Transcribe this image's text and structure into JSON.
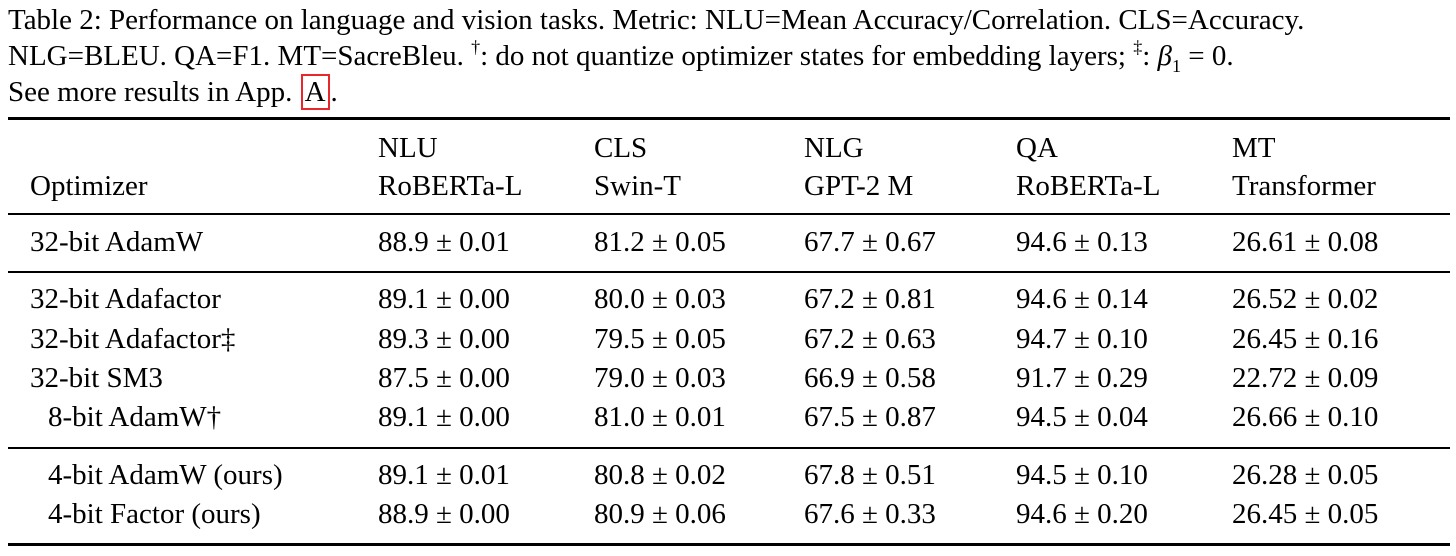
{
  "caption": {
    "label": "Table 2:",
    "line1_rest": " Performance on language and vision tasks. Metric: NLU=Mean Accuracy/Correlation. CLS=Accuracy.",
    "line2_a": "NLG=BLEU. QA=F1. MT=SacreBleu. ",
    "dagger": "†",
    "line2_b": ": do not quantize optimizer states for embedding layers; ",
    "ddagger": "‡",
    "line2_c": ": ",
    "beta": "β",
    "beta_sub": "1",
    "line2_d": " = 0.",
    "line3_a": "See more results in App. ",
    "ref": "A",
    "line3_b": "."
  },
  "header": {
    "optimizer": "Optimizer",
    "cols": [
      {
        "task": "NLU",
        "model": "RoBERTa-L"
      },
      {
        "task": "CLS",
        "model": "Swin-T"
      },
      {
        "task": "NLG",
        "model": "GPT-2 M"
      },
      {
        "task": "QA",
        "model": "RoBERTa-L"
      },
      {
        "task": "MT",
        "model": "Transformer"
      }
    ]
  },
  "rows": [
    {
      "name": "32-bit AdamW",
      "vals": [
        "88.9 ± 0.01",
        "81.2 ± 0.05",
        "67.7 ± 0.67",
        "94.6 ± 0.13",
        "26.61 ± 0.08"
      ]
    },
    {
      "name": "32-bit Adafactor",
      "vals": [
        "89.1 ± 0.00",
        "80.0 ± 0.03",
        "67.2 ± 0.81",
        "94.6 ± 0.14",
        "26.52 ± 0.02"
      ]
    },
    {
      "name": "32-bit Adafactor‡",
      "vals": [
        "89.3 ± 0.00",
        "79.5 ± 0.05",
        "67.2 ± 0.63",
        "94.7 ± 0.10",
        "26.45 ± 0.16"
      ]
    },
    {
      "name": "32-bit SM3",
      "vals": [
        "87.5 ± 0.00",
        "79.0 ± 0.03",
        "66.9 ± 0.58",
        "91.7 ± 0.29",
        "22.72 ± 0.09"
      ]
    },
    {
      "name": "8-bit AdamW†",
      "vals": [
        "89.1 ± 0.00",
        "81.0 ± 0.01",
        "67.5 ± 0.87",
        "94.5 ± 0.04",
        "26.66 ± 0.10"
      ]
    },
    {
      "name": "4-bit AdamW (ours)",
      "vals": [
        "89.1 ± 0.01",
        "80.8 ± 0.02",
        "67.8 ± 0.51",
        "94.5 ± 0.10",
        "26.28 ± 0.05"
      ]
    },
    {
      "name": "4-bit Factor (ours)",
      "vals": [
        "88.9 ± 0.00",
        "80.9 ± 0.06",
        "67.6 ± 0.33",
        "94.6 ± 0.20",
        "26.45 ± 0.05"
      ]
    }
  ]
}
